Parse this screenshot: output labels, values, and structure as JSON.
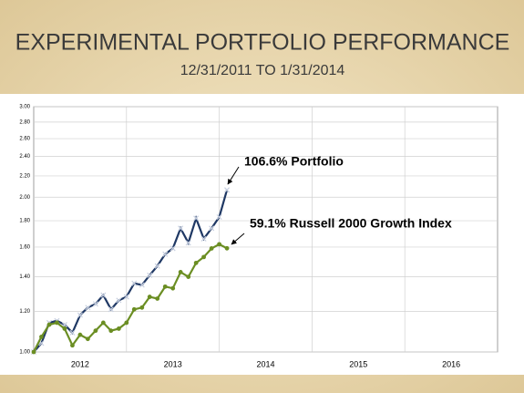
{
  "chart_data": {
    "type": "line",
    "title": "EXPERIMENTAL PORTFOLIO PERFORMANCE",
    "subtitle": "12/31/2011 TO 1/31/2014",
    "x": [
      2012,
      2012.083,
      2012.167,
      2012.25,
      2012.333,
      2012.417,
      2012.5,
      2012.583,
      2012.667,
      2012.75,
      2012.833,
      2012.917,
      2013,
      2013.083,
      2013.167,
      2013.25,
      2013.333,
      2013.417,
      2013.5,
      2013.583,
      2013.667,
      2013.75,
      2013.833,
      2013.917,
      2014,
      2014.083
    ],
    "xlim": [
      2012,
      2017
    ],
    "x_bands": [
      "2012",
      "2013",
      "2014",
      "2015",
      "2016"
    ],
    "ylim": [
      1.0,
      3.0
    ],
    "log_y": true,
    "grid": true,
    "yticks": [
      {
        "value": 1.0,
        "label": "1.00"
      },
      {
        "value": 1.2,
        "label": "1.20"
      },
      {
        "value": 1.4,
        "label": "1.40"
      },
      {
        "value": 1.6,
        "label": "1.60"
      },
      {
        "value": 1.8,
        "label": "1.80"
      },
      {
        "value": 2.0,
        "label": "2.00"
      },
      {
        "value": 2.2,
        "label": "2.20"
      },
      {
        "value": 2.4,
        "label": "2.40"
      },
      {
        "value": 2.6,
        "label": "2.60"
      },
      {
        "value": 2.8,
        "label": "2.80"
      },
      {
        "value": 3.0,
        "label": "3.00"
      }
    ],
    "series": [
      {
        "name": "Portfolio",
        "color": "#1f3864",
        "marker": "x",
        "values": [
          1.0,
          1.04,
          1.14,
          1.15,
          1.13,
          1.09,
          1.18,
          1.22,
          1.24,
          1.29,
          1.21,
          1.26,
          1.28,
          1.36,
          1.35,
          1.41,
          1.47,
          1.55,
          1.59,
          1.74,
          1.63,
          1.82,
          1.66,
          1.74,
          1.83,
          2.066
        ]
      },
      {
        "name": "Russell 2000 Growth Index",
        "color": "#6b8e23",
        "marker": "circle",
        "values": [
          1.0,
          1.07,
          1.13,
          1.14,
          1.11,
          1.03,
          1.08,
          1.06,
          1.1,
          1.14,
          1.1,
          1.11,
          1.14,
          1.21,
          1.22,
          1.28,
          1.27,
          1.34,
          1.33,
          1.43,
          1.4,
          1.49,
          1.53,
          1.59,
          1.62,
          1.591
        ]
      }
    ],
    "annotations": [
      "106.6% Portfolio",
      "59.1% Russell 2000 Growth Index"
    ]
  }
}
